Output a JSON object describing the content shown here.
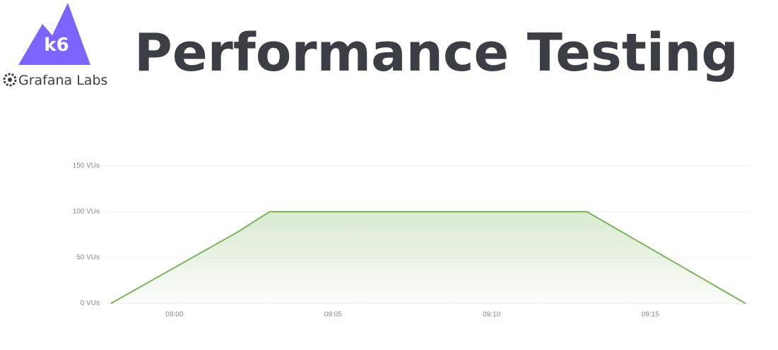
{
  "logo": {
    "badge": "k6",
    "brand": "Grafana Labs"
  },
  "chart_data": {
    "type": "line",
    "title": "Performance Testing",
    "x": [
      "08:58",
      "09:02",
      "09:03",
      "09:13",
      "09:18"
    ],
    "values": [
      0,
      78,
      100,
      100,
      0
    ],
    "color": "#7ab55c",
    "fill": true,
    "xlim": [
      "08:58",
      "09:18"
    ],
    "xticks": [
      "09:00",
      "09:05",
      "09:10",
      "09:15"
    ],
    "ylim": [
      0,
      150
    ],
    "yticks": [
      {
        "value": 0,
        "label": "0 VUs"
      },
      {
        "value": 50,
        "label": "50 VUs"
      },
      {
        "value": 100,
        "label": "100 VUs"
      },
      {
        "value": 150,
        "label": "150 VUs"
      }
    ],
    "grid": true
  }
}
